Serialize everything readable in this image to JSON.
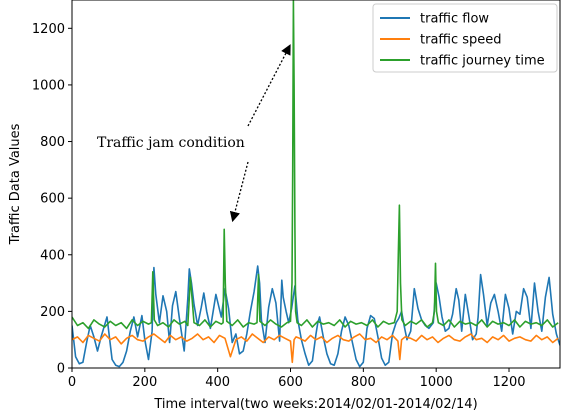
{
  "chart_data": {
    "type": "line",
    "xlabel": "Time interval(two weeks:2014/02/01-2014/02/14)",
    "ylabel": "Traffic Data Values",
    "xlim": [
      0,
      1340
    ],
    "ylim": [
      0,
      1300
    ],
    "x_ticks": [
      0,
      200,
      400,
      600,
      800,
      1000,
      1200
    ],
    "y_ticks": [
      0,
      200,
      400,
      600,
      800,
      1000,
      1200
    ],
    "legend_position": "top-right",
    "annotation": {
      "text": "Traffic jam condition",
      "arrow_targets": [
        [
          420,
          510
        ],
        [
          608,
          1150
        ]
      ]
    },
    "series": [
      {
        "name": "traffic flow",
        "color": "#1f77b4",
        "x": [
          0,
          10,
          20,
          30,
          40,
          50,
          60,
          70,
          80,
          96,
          110,
          120,
          130,
          140,
          150,
          160,
          170,
          180,
          192,
          200,
          210,
          220,
          225,
          230,
          240,
          250,
          260,
          268,
          276,
          285,
          295,
          308,
          318,
          322,
          328,
          335,
          345,
          355,
          362,
          370,
          380,
          395,
          410,
          420,
          430,
          440,
          450,
          460,
          470,
          480,
          490,
          500,
          510,
          515,
          520,
          530,
          540,
          550,
          560,
          570,
          576,
          580,
          588,
          595,
          603,
          612,
          620,
          630,
          640,
          650,
          660,
          670,
          675,
          680,
          690,
          700,
          710,
          720,
          730,
          740,
          750,
          760,
          770,
          780,
          790,
          800,
          810,
          820,
          830,
          840,
          850,
          860,
          870,
          880,
          890,
          897,
          905,
          912,
          920,
          930,
          940,
          950,
          960,
          970,
          980,
          992,
          1000,
          1008,
          1016,
          1025,
          1035,
          1045,
          1055,
          1062,
          1070,
          1080,
          1090,
          1100,
          1110,
          1115,
          1122,
          1130,
          1140,
          1150,
          1160,
          1170,
          1180,
          1190,
          1200,
          1210,
          1220,
          1230,
          1240,
          1250,
          1260,
          1270,
          1280,
          1290,
          1300,
          1310,
          1320,
          1330,
          1340
        ],
        "values": [
          150,
          40,
          15,
          20,
          90,
          150,
          110,
          60,
          110,
          180,
          30,
          10,
          5,
          20,
          60,
          130,
          180,
          110,
          185,
          100,
          30,
          130,
          355,
          260,
          160,
          255,
          200,
          90,
          220,
          270,
          175,
          60,
          245,
          350,
          300,
          225,
          150,
          215,
          265,
          200,
          140,
          260,
          180,
          280,
          210,
          90,
          120,
          50,
          60,
          120,
          200,
          270,
          360,
          300,
          170,
          90,
          215,
          280,
          230,
          95,
          310,
          250,
          200,
          160,
          210,
          290,
          170,
          100,
          50,
          10,
          25,
          120,
          160,
          180,
          110,
          50,
          15,
          10,
          50,
          130,
          180,
          150,
          90,
          30,
          5,
          20,
          140,
          185,
          175,
          110,
          35,
          10,
          20,
          120,
          160,
          175,
          200,
          150,
          100,
          130,
          280,
          210,
          170,
          150,
          140,
          160,
          300,
          250,
          180,
          130,
          140,
          190,
          280,
          240,
          130,
          260,
          180,
          100,
          120,
          180,
          330,
          260,
          150,
          230,
          260,
          200,
          130,
          260,
          210,
          120,
          200,
          190,
          280,
          250,
          140,
          300,
          200,
          130,
          250,
          320,
          190,
          120,
          80
        ]
      },
      {
        "name": "traffic speed",
        "color": "#ff7f0e",
        "x": [
          0,
          15,
          30,
          45,
          60,
          75,
          90,
          105,
          120,
          135,
          150,
          165,
          180,
          195,
          210,
          225,
          240,
          255,
          270,
          285,
          300,
          315,
          330,
          345,
          360,
          375,
          390,
          405,
          420,
          435,
          450,
          465,
          480,
          495,
          510,
          525,
          540,
          555,
          570,
          585,
          600,
          605,
          610,
          615,
          625,
          640,
          655,
          670,
          685,
          700,
          715,
          730,
          745,
          760,
          775,
          790,
          805,
          820,
          835,
          850,
          865,
          880,
          895,
          900,
          905,
          915,
          930,
          945,
          960,
          975,
          990,
          1005,
          1020,
          1035,
          1050,
          1065,
          1080,
          1095,
          1110,
          1125,
          1140,
          1155,
          1170,
          1185,
          1200,
          1215,
          1230,
          1245,
          1260,
          1275,
          1290,
          1305,
          1320,
          1335
        ],
        "values": [
          100,
          110,
          90,
          115,
          105,
          95,
          120,
          100,
          110,
          85,
          105,
          115,
          100,
          95,
          110,
          120,
          105,
          90,
          115,
          100,
          110,
          95,
          105,
          120,
          100,
          110,
          90,
          115,
          105,
          40,
          100,
          110,
          95,
          120,
          105,
          90,
          110,
          100,
          115,
          105,
          95,
          20,
          100,
          110,
          105,
          95,
          115,
          100,
          110,
          90,
          105,
          115,
          100,
          95,
          110,
          120,
          100,
          105,
          90,
          110,
          100,
          115,
          95,
          30,
          100,
          110,
          105,
          95,
          115,
          100,
          110,
          90,
          105,
          115,
          100,
          95,
          110,
          120,
          100,
          105,
          90,
          110,
          100,
          115,
          95,
          105,
          110,
          100,
          95,
          115,
          100,
          110,
          90,
          105
        ]
      },
      {
        "name": "traffic journey time",
        "color": "#2ca02c",
        "x": [
          0,
          15,
          30,
          45,
          60,
          75,
          90,
          105,
          120,
          135,
          150,
          165,
          180,
          195,
          210,
          218,
          222,
          226,
          235,
          250,
          265,
          280,
          295,
          310,
          318,
          325,
          335,
          350,
          365,
          380,
          395,
          410,
          415,
          418,
          421,
          425,
          440,
          455,
          470,
          485,
          500,
          508,
          512,
          516,
          530,
          545,
          560,
          575,
          590,
          600,
          604,
          606,
          608,
          610,
          612,
          614,
          618,
          630,
          645,
          660,
          675,
          690,
          705,
          720,
          735,
          750,
          765,
          780,
          795,
          810,
          825,
          840,
          855,
          870,
          885,
          893,
          896,
          899,
          902,
          906,
          915,
          930,
          945,
          960,
          975,
          990,
          995,
          998,
          1001,
          1006,
          1020,
          1035,
          1050,
          1065,
          1080,
          1095,
          1110,
          1125,
          1140,
          1155,
          1170,
          1185,
          1200,
          1215,
          1230,
          1245,
          1260,
          1275,
          1290,
          1305,
          1320,
          1335
        ],
        "values": [
          180,
          150,
          160,
          140,
          170,
          155,
          145,
          165,
          150,
          160,
          140,
          170,
          150,
          165,
          155,
          160,
          340,
          170,
          150,
          160,
          145,
          170,
          155,
          165,
          150,
          320,
          160,
          150,
          170,
          145,
          165,
          155,
          160,
          490,
          300,
          165,
          150,
          170,
          145,
          160,
          155,
          160,
          330,
          165,
          150,
          170,
          155,
          145,
          160,
          165,
          300,
          700,
          1300,
          1000,
          500,
          200,
          160,
          150,
          170,
          145,
          165,
          155,
          160,
          150,
          170,
          145,
          165,
          155,
          160,
          150,
          170,
          145,
          165,
          155,
          160,
          200,
          400,
          575,
          300,
          170,
          150,
          165,
          155,
          170,
          145,
          160,
          200,
          370,
          200,
          160,
          150,
          170,
          145,
          165,
          155,
          160,
          150,
          170,
          145,
          165,
          155,
          160,
          150,
          170,
          145,
          165,
          155,
          160,
          150,
          170,
          145,
          160
        ]
      }
    ]
  }
}
